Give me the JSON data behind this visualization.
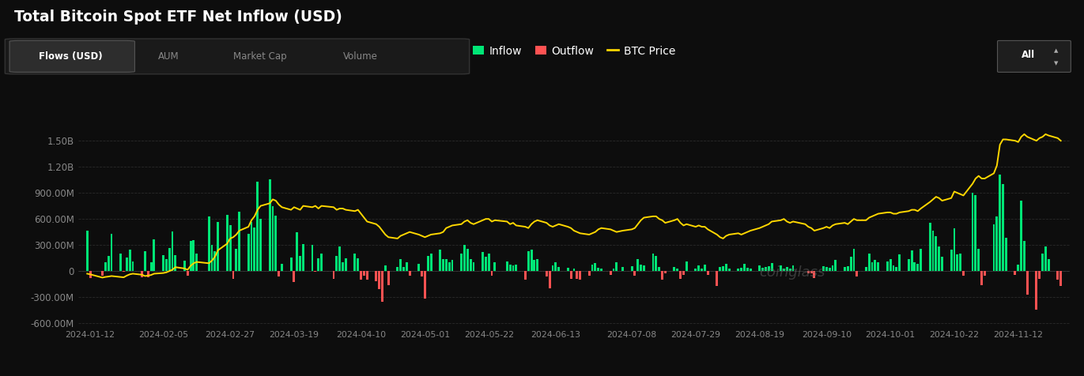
{
  "title": "Total Bitcoin Spot ETF Net Inflow (USD)",
  "background_color": "#0d0d0d",
  "bar_color_inflow": "#00e676",
  "bar_color_outflow": "#ff5252",
  "btc_line_color": "#ffd700",
  "grid_color": "#2a2a2a",
  "yticks": [
    -600000000,
    -300000000,
    0,
    300000000,
    600000000,
    900000000,
    1200000000,
    1500000000
  ],
  "ytick_labels": [
    "-600.00M",
    "-300.00M",
    "0",
    "300.00M",
    "600.00M",
    "900.00M",
    "1.20B",
    "1.50B"
  ],
  "xtick_labels": [
    "2024-01-12",
    "2024-02-05",
    "2024-02-27",
    "2024-03-19",
    "2024-04-10",
    "2024-05-01",
    "2024-05-22",
    "2024-06-13",
    "2024-07-08",
    "2024-07-29",
    "2024-08-19",
    "2024-09-10",
    "2024-10-01",
    "2024-10-22",
    "2024-11-12"
  ],
  "legend_labels": [
    "Inflow",
    "Outflow",
    "BTC Price"
  ],
  "legend_colors": [
    "#00e676",
    "#ff5252",
    "#ffd700"
  ],
  "watermark": "coinglass",
  "tab_labels": [
    "Flows (USD)",
    "AUM",
    "Market Cap",
    "Volume"
  ],
  "all_button": "All",
  "dates": [
    "2024-01-11",
    "2024-01-12",
    "2024-01-16",
    "2024-01-17",
    "2024-01-18",
    "2024-01-19",
    "2024-01-22",
    "2024-01-23",
    "2024-01-24",
    "2024-01-25",
    "2024-01-26",
    "2024-01-29",
    "2024-01-30",
    "2024-01-31",
    "2024-02-01",
    "2024-02-02",
    "2024-02-05",
    "2024-02-06",
    "2024-02-07",
    "2024-02-08",
    "2024-02-09",
    "2024-02-12",
    "2024-02-13",
    "2024-02-14",
    "2024-02-15",
    "2024-02-16",
    "2024-02-20",
    "2024-02-21",
    "2024-02-22",
    "2024-02-23",
    "2024-02-26",
    "2024-02-27",
    "2024-02-28",
    "2024-02-29",
    "2024-03-01",
    "2024-03-04",
    "2024-03-05",
    "2024-03-06",
    "2024-03-07",
    "2024-03-08",
    "2024-03-11",
    "2024-03-12",
    "2024-03-13",
    "2024-03-14",
    "2024-03-15",
    "2024-03-18",
    "2024-03-19",
    "2024-03-20",
    "2024-03-21",
    "2024-03-22",
    "2024-03-25",
    "2024-03-26",
    "2024-03-27",
    "2024-03-28",
    "2024-04-01",
    "2024-04-02",
    "2024-04-03",
    "2024-04-04",
    "2024-04-05",
    "2024-04-08",
    "2024-04-09",
    "2024-04-10",
    "2024-04-11",
    "2024-04-12",
    "2024-04-15",
    "2024-04-16",
    "2024-04-17",
    "2024-04-18",
    "2024-04-19",
    "2024-04-22",
    "2024-04-23",
    "2024-04-24",
    "2024-04-25",
    "2024-04-26",
    "2024-04-29",
    "2024-04-30",
    "2024-05-01",
    "2024-05-02",
    "2024-05-03",
    "2024-05-06",
    "2024-05-07",
    "2024-05-08",
    "2024-05-09",
    "2024-05-10",
    "2024-05-13",
    "2024-05-14",
    "2024-05-15",
    "2024-05-16",
    "2024-05-17",
    "2024-05-20",
    "2024-05-21",
    "2024-05-22",
    "2024-05-23",
    "2024-05-24",
    "2024-05-28",
    "2024-05-29",
    "2024-05-30",
    "2024-05-31",
    "2024-06-03",
    "2024-06-04",
    "2024-06-05",
    "2024-06-06",
    "2024-06-07",
    "2024-06-10",
    "2024-06-11",
    "2024-06-12",
    "2024-06-13",
    "2024-06-14",
    "2024-06-17",
    "2024-06-18",
    "2024-06-19",
    "2024-06-20",
    "2024-06-21",
    "2024-06-24",
    "2024-06-25",
    "2024-06-26",
    "2024-06-27",
    "2024-06-28",
    "2024-07-01",
    "2024-07-02",
    "2024-07-03",
    "2024-07-05",
    "2024-07-08",
    "2024-07-09",
    "2024-07-10",
    "2024-07-11",
    "2024-07-12",
    "2024-07-15",
    "2024-07-16",
    "2024-07-17",
    "2024-07-18",
    "2024-07-19",
    "2024-07-22",
    "2024-07-23",
    "2024-07-24",
    "2024-07-25",
    "2024-07-26",
    "2024-07-29",
    "2024-07-30",
    "2024-07-31",
    "2024-08-01",
    "2024-08-02",
    "2024-08-05",
    "2024-08-06",
    "2024-08-07",
    "2024-08-08",
    "2024-08-09",
    "2024-08-12",
    "2024-08-13",
    "2024-08-14",
    "2024-08-15",
    "2024-08-16",
    "2024-08-19",
    "2024-08-20",
    "2024-08-21",
    "2024-08-22",
    "2024-08-23",
    "2024-08-26",
    "2024-08-27",
    "2024-08-28",
    "2024-08-29",
    "2024-08-30",
    "2024-09-03",
    "2024-09-04",
    "2024-09-05",
    "2024-09-06",
    "2024-09-09",
    "2024-09-10",
    "2024-09-11",
    "2024-09-12",
    "2024-09-13",
    "2024-09-16",
    "2024-09-17",
    "2024-09-18",
    "2024-09-19",
    "2024-09-20",
    "2024-09-23",
    "2024-09-24",
    "2024-09-25",
    "2024-09-26",
    "2024-09-27",
    "2024-09-30",
    "2024-10-01",
    "2024-10-02",
    "2024-10-03",
    "2024-10-04",
    "2024-10-07",
    "2024-10-08",
    "2024-10-09",
    "2024-10-10",
    "2024-10-11",
    "2024-10-14",
    "2024-10-15",
    "2024-10-16",
    "2024-10-17",
    "2024-10-18",
    "2024-10-21",
    "2024-10-22",
    "2024-10-23",
    "2024-10-24",
    "2024-10-25",
    "2024-10-28",
    "2024-10-29",
    "2024-10-30",
    "2024-10-31",
    "2024-11-01",
    "2024-11-04",
    "2024-11-05",
    "2024-11-06",
    "2024-11-07",
    "2024-11-08",
    "2024-11-11",
    "2024-11-12",
    "2024-11-13",
    "2024-11-14",
    "2024-11-15",
    "2024-11-18",
    "2024-11-19",
    "2024-11-20",
    "2024-11-21",
    "2024-11-22",
    "2024-11-25",
    "2024-11-26"
  ],
  "flows": [
    460000000,
    -82000000,
    -55000000,
    100000000,
    170000000,
    420000000,
    193000000,
    -10000000,
    150000000,
    243000000,
    105000000,
    -76000000,
    224000000,
    -80000000,
    100000000,
    360000000,
    178000000,
    130000000,
    260000000,
    450000000,
    180000000,
    114000000,
    -55000000,
    340000000,
    350000000,
    200000000,
    620000000,
    300000000,
    220000000,
    560000000,
    640000000,
    520000000,
    -90000000,
    250000000,
    680000000,
    420000000,
    562000000,
    500000000,
    1020000000,
    600000000,
    1050000000,
    740000000,
    630000000,
    -65000000,
    80000000,
    150000000,
    -130000000,
    440000000,
    170000000,
    305000000,
    300000000,
    -10000000,
    140000000,
    200000000,
    -90000000,
    170000000,
    280000000,
    100000000,
    145000000,
    200000000,
    140000000,
    -108000000,
    -60000000,
    -100000000,
    -120000000,
    -210000000,
    -360000000,
    60000000,
    -170000000,
    45000000,
    130000000,
    41000000,
    100000000,
    -56000000,
    81000000,
    -70000000,
    -320000000,
    170000000,
    200000000,
    240000000,
    137000000,
    130000000,
    100000000,
    120000000,
    200000000,
    300000000,
    250000000,
    130000000,
    100000000,
    215000000,
    160000000,
    200000000,
    -58000000,
    100000000,
    105000000,
    72000000,
    60000000,
    65000000,
    -100000000,
    220000000,
    240000000,
    120000000,
    130000000,
    -65000000,
    -200000000,
    60000000,
    100000000,
    40000000,
    34000000,
    -90000000,
    23000000,
    -90000000,
    -100000000,
    -59000000,
    65000000,
    91000000,
    30000000,
    27000000,
    -49000000,
    21000000,
    100000000,
    44000000,
    51000000,
    -62000000,
    133000000,
    70000000,
    63000000,
    200000000,
    168000000,
    45000000,
    -100000000,
    -30000000,
    43000000,
    20000000,
    -98000000,
    -50000000,
    105000000,
    20000000,
    60000000,
    27000000,
    65000000,
    -49000000,
    -180000000,
    45000000,
    50000000,
    82000000,
    20000000,
    28000000,
    31000000,
    75000000,
    36000000,
    20000000,
    60000000,
    29000000,
    40000000,
    55000000,
    90000000,
    63000000,
    25000000,
    40000000,
    28000000,
    60000000,
    -5000000,
    -31000000,
    -35000000,
    -87000000,
    50000000,
    45000000,
    35000000,
    60000000,
    120000000,
    40000000,
    55000000,
    158000000,
    250000000,
    -65000000,
    42000000,
    200000000,
    95000000,
    120000000,
    95000000,
    105000000,
    130000000,
    60000000,
    40000000,
    190000000,
    137000000,
    235000000,
    100000000,
    80000000,
    253000000,
    555000000,
    458000000,
    393000000,
    280000000,
    159000000,
    242000000,
    490000000,
    185000000,
    192000000,
    -59000000,
    893000000,
    870000000,
    250000000,
    -170000000,
    -54000000,
    530000000,
    622000000,
    1110000000,
    1000000000,
    382000000,
    -50000000,
    68000000,
    810000000,
    340000000,
    -280000000,
    -450000000,
    -90000000,
    200000000,
    280000000,
    130000000,
    -100000000,
    -175000000
  ],
  "btc_price_norm": [
    0.01,
    0.005,
    -0.02,
    -0.015,
    -0.012,
    -0.008,
    -0.015,
    -0.018,
    -0.005,
    0.005,
    0.01,
    0.002,
    -0.008,
    -0.005,
    0.0,
    0.01,
    0.015,
    0.02,
    0.03,
    0.04,
    0.06,
    0.05,
    0.04,
    0.07,
    0.09,
    0.1,
    0.09,
    0.11,
    0.14,
    0.19,
    0.24,
    0.28,
    0.29,
    0.31,
    0.34,
    0.37,
    0.42,
    0.45,
    0.5,
    0.53,
    0.55,
    0.58,
    0.57,
    0.54,
    0.52,
    0.5,
    0.52,
    0.51,
    0.5,
    0.53,
    0.52,
    0.53,
    0.51,
    0.53,
    0.52,
    0.5,
    0.51,
    0.51,
    0.5,
    0.49,
    0.5,
    0.47,
    0.44,
    0.41,
    0.39,
    0.37,
    0.34,
    0.31,
    0.29,
    0.28,
    0.3,
    0.31,
    0.32,
    0.33,
    0.31,
    0.3,
    0.29,
    0.3,
    0.31,
    0.32,
    0.33,
    0.36,
    0.37,
    0.38,
    0.39,
    0.41,
    0.42,
    0.4,
    0.39,
    0.42,
    0.43,
    0.43,
    0.41,
    0.42,
    0.41,
    0.39,
    0.4,
    0.38,
    0.37,
    0.36,
    0.39,
    0.41,
    0.42,
    0.4,
    0.38,
    0.37,
    0.38,
    0.39,
    0.37,
    0.36,
    0.34,
    0.33,
    0.32,
    0.31,
    0.32,
    0.33,
    0.35,
    0.36,
    0.35,
    0.34,
    0.33,
    0.34,
    0.35,
    0.36,
    0.39,
    0.42,
    0.44,
    0.45,
    0.45,
    0.43,
    0.42,
    0.4,
    0.42,
    0.43,
    0.4,
    0.38,
    0.39,
    0.37,
    0.38,
    0.37,
    0.37,
    0.35,
    0.31,
    0.29,
    0.28,
    0.3,
    0.31,
    0.32,
    0.31,
    0.32,
    0.33,
    0.34,
    0.36,
    0.37,
    0.38,
    0.39,
    0.41,
    0.42,
    0.43,
    0.41,
    0.4,
    0.41,
    0.39,
    0.37,
    0.36,
    0.34,
    0.36,
    0.37,
    0.36,
    0.38,
    0.39,
    0.4,
    0.39,
    0.41,
    0.43,
    0.42,
    0.42,
    0.44,
    0.45,
    0.46,
    0.47,
    0.48,
    0.48,
    0.47,
    0.47,
    0.48,
    0.49,
    0.5,
    0.5,
    0.49,
    0.51,
    0.56,
    0.58,
    0.6,
    0.59,
    0.57,
    0.59,
    0.64,
    0.63,
    0.62,
    0.61,
    0.7,
    0.74,
    0.76,
    0.74,
    0.74,
    0.78,
    0.84,
    1.0,
    1.04,
    1.04,
    1.03,
    1.02,
    1.06,
    1.08,
    1.06,
    1.03,
    1.05,
    1.06,
    1.08,
    1.07,
    1.05,
    1.03
  ],
  "btc_scale_min": -50000000,
  "btc_scale_max": 1450000000,
  "ylim": [
    -650000000,
    1600000000
  ],
  "xlim_start": "2024-01-08",
  "xlim_end": "2024-11-29"
}
